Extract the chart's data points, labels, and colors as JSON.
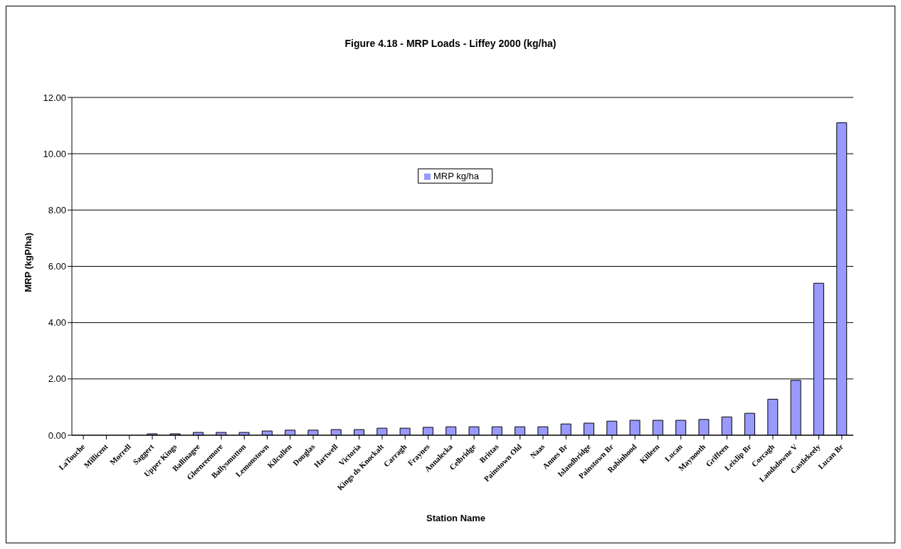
{
  "chart_data": {
    "type": "bar",
    "title": "Figure 4.18 - MRP Loads - Liffey 2000 (kg/ha)",
    "xlabel": "Station Name",
    "ylabel": "MRP (kgP/ha)",
    "categories": [
      "LaTouche",
      "Millicent",
      "Morrell",
      "Saggert",
      "Upper Kings",
      "Ballinagee",
      "Gleenreemore",
      "Ballysmutton",
      "Lemonstown",
      "Kilcullen",
      "Douglas",
      "Hartwell",
      "Victoria",
      "Kings ds Knockalt",
      "Carragh",
      "Fraynes",
      "Annalecka",
      "Celbridge",
      "Brittas",
      "Painstown Old",
      "Naas",
      "Annes Br",
      "Islandbridge",
      "Painstown Br",
      "Robinhood",
      "Killeen",
      "Lucan",
      "Maynooth",
      "Griffeen",
      "Leixlip Br",
      "Corcagh",
      "Landsdowne V",
      "Castlekeely",
      "Lucan Br"
    ],
    "series": [
      {
        "name": "MRP kg/ha",
        "color": "#9999ff",
        "values": [
          0,
          0,
          0,
          0.05,
          0.05,
          0.1,
          0.1,
          0.1,
          0.15,
          0.18,
          0.18,
          0.2,
          0.2,
          0.25,
          0.25,
          0.28,
          0.3,
          0.3,
          0.3,
          0.3,
          0.3,
          0.4,
          0.43,
          0.5,
          0.53,
          0.53,
          0.53,
          0.56,
          0.65,
          0.78,
          1.28,
          1.95,
          5.4,
          11.1
        ]
      }
    ],
    "ylim": [
      0,
      12
    ],
    "yticks": [
      {
        "value": 0,
        "label": "0.00"
      },
      {
        "value": 2,
        "label": "2.00"
      },
      {
        "value": 4,
        "label": "4.00"
      },
      {
        "value": 6,
        "label": "6.00"
      },
      {
        "value": 8,
        "label": "8.00"
      },
      {
        "value": 10,
        "label": "10.00"
      },
      {
        "value": 12,
        "label": "12.00"
      }
    ],
    "grid": "y",
    "legend": "top"
  }
}
